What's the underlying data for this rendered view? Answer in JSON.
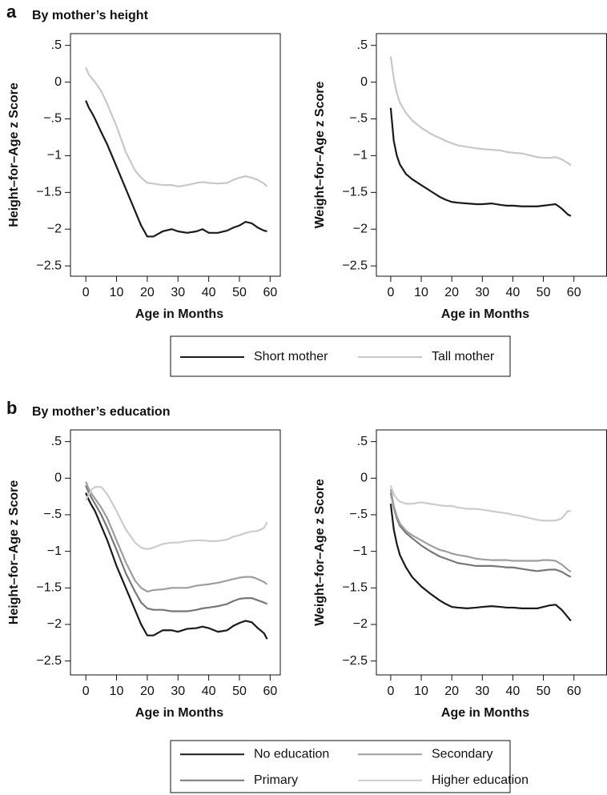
{
  "chart_data": [
    {
      "type": "line",
      "panel": "a",
      "title": "By mother’s height",
      "xlabel": "Age in Months",
      "ylabel": "Height–for–Age z Score",
      "legend": "bottom",
      "xlim": [
        -5,
        63.3
      ],
      "ylim": [
        -2.64,
        0.66
      ],
      "xticks": [
        0,
        10,
        20,
        30,
        40,
        50,
        60
      ],
      "yticks": [
        {
          "value": 0.5,
          "label": ".5"
        },
        0,
        {
          "value": -0.5,
          "label": "−.5"
        },
        {
          "value": -1,
          "label": "−1"
        },
        {
          "value": -1.5,
          "label": "−1.5"
        },
        {
          "value": -2,
          "label": "−2"
        },
        {
          "value": -2.5,
          "label": "−2.5"
        }
      ],
      "x": [
        0,
        1,
        2,
        3,
        5,
        7,
        10,
        13,
        16,
        18,
        20,
        22,
        25,
        28,
        30,
        33,
        36,
        38,
        40,
        43,
        46,
        48,
        50,
        52,
        54,
        56,
        58,
        59
      ],
      "series": [
        {
          "name": "Short mother",
          "color": "#1a1a1a",
          "values": [
            -0.25,
            -0.35,
            -0.42,
            -0.5,
            -0.68,
            -0.85,
            -1.15,
            -1.45,
            -1.75,
            -1.95,
            -2.1,
            -2.1,
            -2.03,
            -2.0,
            -2.03,
            -2.05,
            -2.03,
            -2.0,
            -2.05,
            -2.05,
            -2.02,
            -1.98,
            -1.95,
            -1.9,
            -1.92,
            -1.98,
            -2.02,
            -2.03
          ]
        },
        {
          "name": "Tall mother",
          "color": "#c8c8c8",
          "values": [
            0.2,
            0.1,
            0.05,
            0.0,
            -0.12,
            -0.3,
            -0.6,
            -0.95,
            -1.2,
            -1.3,
            -1.37,
            -1.38,
            -1.4,
            -1.4,
            -1.42,
            -1.4,
            -1.37,
            -1.36,
            -1.37,
            -1.38,
            -1.37,
            -1.33,
            -1.3,
            -1.28,
            -1.3,
            -1.33,
            -1.38,
            -1.42
          ]
        }
      ]
    },
    {
      "type": "line",
      "xlabel": "Age in Months",
      "ylabel": "Weight–for–Age z Score",
      "xlim": [
        -4.7,
        70.7
      ],
      "ylim": [
        -2.64,
        0.66
      ],
      "xticks": [
        0,
        10,
        20,
        30,
        40,
        50,
        60
      ],
      "yticks": [
        {
          "value": 0.5,
          "label": ".5"
        },
        0,
        {
          "value": -0.5,
          "label": "−.5"
        },
        {
          "value": -1,
          "label": "−1"
        },
        {
          "value": -1.5,
          "label": "−1.5"
        },
        {
          "value": -2,
          "label": "−2"
        },
        {
          "value": -2.5,
          "label": "−2.5"
        }
      ],
      "x": [
        0,
        1,
        2,
        3,
        5,
        7,
        10,
        13,
        16,
        18,
        20,
        22,
        25,
        28,
        30,
        33,
        36,
        38,
        40,
        43,
        46,
        48,
        50,
        52,
        54,
        56,
        58,
        59
      ],
      "series": [
        {
          "color": "#1a1a1a",
          "values": [
            -0.35,
            -0.8,
            -1.0,
            -1.12,
            -1.25,
            -1.32,
            -1.4,
            -1.48,
            -1.56,
            -1.6,
            -1.63,
            -1.64,
            -1.65,
            -1.66,
            -1.66,
            -1.65,
            -1.67,
            -1.68,
            -1.68,
            -1.69,
            -1.69,
            -1.69,
            -1.68,
            -1.67,
            -1.66,
            -1.72,
            -1.8,
            -1.82
          ]
        },
        {
          "color": "#c8c8c8",
          "values": [
            0.35,
            0.05,
            -0.15,
            -0.28,
            -0.42,
            -0.52,
            -0.62,
            -0.7,
            -0.76,
            -0.8,
            -0.83,
            -0.86,
            -0.88,
            -0.9,
            -0.91,
            -0.92,
            -0.93,
            -0.95,
            -0.96,
            -0.97,
            -1.0,
            -1.02,
            -1.03,
            -1.03,
            -1.02,
            -1.05,
            -1.1,
            -1.13
          ]
        }
      ]
    },
    {
      "type": "line",
      "panel": "b",
      "title": "By mother’s education",
      "xlabel": "Age in Months",
      "ylabel": "Height–for–Age z Score",
      "legend": "bottom",
      "xlim": [
        -5,
        63.3
      ],
      "ylim": [
        -2.69,
        0.66
      ],
      "xticks": [
        0,
        10,
        20,
        30,
        40,
        50,
        60
      ],
      "yticks": [
        {
          "value": 0.5,
          "label": ".5"
        },
        0,
        {
          "value": -0.5,
          "label": "−.5"
        },
        {
          "value": -1,
          "label": "−1"
        },
        {
          "value": -1.5,
          "label": "−1.5"
        },
        {
          "value": -2,
          "label": "−2"
        },
        {
          "value": -2.5,
          "label": "−2.5"
        }
      ],
      "x": [
        0,
        1,
        2,
        3,
        5,
        7,
        10,
        13,
        16,
        18,
        20,
        22,
        25,
        28,
        30,
        33,
        36,
        38,
        40,
        43,
        46,
        48,
        50,
        52,
        54,
        56,
        58,
        59
      ],
      "series": [
        {
          "name": "No education",
          "color": "#1a1a1a",
          "values": [
            -0.2,
            -0.3,
            -0.38,
            -0.45,
            -0.65,
            -0.85,
            -1.2,
            -1.5,
            -1.8,
            -2.0,
            -2.15,
            -2.15,
            -2.08,
            -2.08,
            -2.1,
            -2.06,
            -2.05,
            -2.03,
            -2.05,
            -2.1,
            -2.08,
            -2.02,
            -1.98,
            -1.95,
            -1.97,
            -2.05,
            -2.12,
            -2.2
          ]
        },
        {
          "name": "Primary",
          "color": "#777777",
          "values": [
            -0.1,
            -0.2,
            -0.28,
            -0.35,
            -0.5,
            -0.68,
            -0.98,
            -1.3,
            -1.55,
            -1.7,
            -1.78,
            -1.8,
            -1.8,
            -1.82,
            -1.82,
            -1.82,
            -1.8,
            -1.78,
            -1.77,
            -1.75,
            -1.72,
            -1.68,
            -1.65,
            -1.64,
            -1.64,
            -1.67,
            -1.7,
            -1.72
          ]
        },
        {
          "name": "Secondary",
          "color": "#9e9e9e",
          "values": [
            -0.05,
            -0.15,
            -0.22,
            -0.28,
            -0.4,
            -0.55,
            -0.85,
            -1.15,
            -1.4,
            -1.5,
            -1.55,
            -1.53,
            -1.52,
            -1.5,
            -1.5,
            -1.5,
            -1.47,
            -1.46,
            -1.45,
            -1.43,
            -1.4,
            -1.38,
            -1.36,
            -1.35,
            -1.35,
            -1.38,
            -1.42,
            -1.45
          ]
        },
        {
          "name": "Higher education",
          "color": "#cccccc",
          "values": [
            -0.3,
            -0.22,
            -0.15,
            -0.12,
            -0.12,
            -0.22,
            -0.45,
            -0.7,
            -0.88,
            -0.95,
            -0.97,
            -0.95,
            -0.9,
            -0.88,
            -0.88,
            -0.86,
            -0.85,
            -0.85,
            -0.86,
            -0.86,
            -0.84,
            -0.8,
            -0.78,
            -0.75,
            -0.73,
            -0.72,
            -0.68,
            -0.6
          ]
        }
      ]
    },
    {
      "type": "line",
      "xlabel": "Age in Months",
      "ylabel": "Weight–for–Age z Score",
      "xlim": [
        -4.7,
        70.7
      ],
      "ylim": [
        -2.69,
        0.66
      ],
      "xticks": [
        0,
        10,
        20,
        30,
        40,
        50,
        60
      ],
      "yticks": [
        {
          "value": 0.5,
          "label": ".5"
        },
        0,
        {
          "value": -0.5,
          "label": "−.5"
        },
        {
          "value": -1,
          "label": "−1"
        },
        {
          "value": -1.5,
          "label": "−1.5"
        },
        {
          "value": -2,
          "label": "−2"
        },
        {
          "value": -2.5,
          "label": "−2.5"
        }
      ],
      "x": [
        0,
        1,
        2,
        3,
        5,
        7,
        10,
        13,
        16,
        18,
        20,
        22,
        25,
        28,
        30,
        33,
        36,
        38,
        40,
        43,
        46,
        48,
        50,
        52,
        54,
        56,
        58,
        59
      ],
      "series": [
        {
          "color": "#1a1a1a",
          "values": [
            -0.35,
            -0.7,
            -0.9,
            -1.05,
            -1.22,
            -1.35,
            -1.48,
            -1.58,
            -1.67,
            -1.72,
            -1.76,
            -1.77,
            -1.78,
            -1.77,
            -1.76,
            -1.75,
            -1.76,
            -1.77,
            -1.77,
            -1.78,
            -1.78,
            -1.78,
            -1.76,
            -1.74,
            -1.73,
            -1.8,
            -1.9,
            -1.95
          ]
        },
        {
          "color": "#777777",
          "values": [
            -0.2,
            -0.4,
            -0.55,
            -0.65,
            -0.75,
            -0.82,
            -0.92,
            -1.0,
            -1.07,
            -1.1,
            -1.13,
            -1.16,
            -1.18,
            -1.2,
            -1.2,
            -1.2,
            -1.21,
            -1.22,
            -1.22,
            -1.24,
            -1.26,
            -1.27,
            -1.26,
            -1.25,
            -1.25,
            -1.28,
            -1.33,
            -1.35
          ]
        },
        {
          "color": "#9e9e9e",
          "values": [
            -0.15,
            -0.38,
            -0.52,
            -0.62,
            -0.72,
            -0.78,
            -0.85,
            -0.92,
            -0.98,
            -1.0,
            -1.03,
            -1.05,
            -1.07,
            -1.1,
            -1.11,
            -1.12,
            -1.12,
            -1.12,
            -1.13,
            -1.13,
            -1.13,
            -1.13,
            -1.12,
            -1.12,
            -1.13,
            -1.18,
            -1.25,
            -1.28
          ]
        },
        {
          "color": "#cccccc",
          "values": [
            -0.1,
            -0.22,
            -0.28,
            -0.32,
            -0.35,
            -0.35,
            -0.33,
            -0.35,
            -0.37,
            -0.38,
            -0.38,
            -0.4,
            -0.42,
            -0.42,
            -0.43,
            -0.45,
            -0.47,
            -0.48,
            -0.5,
            -0.52,
            -0.55,
            -0.57,
            -0.58,
            -0.58,
            -0.58,
            -0.55,
            -0.45,
            -0.45
          ]
        }
      ]
    }
  ]
}
